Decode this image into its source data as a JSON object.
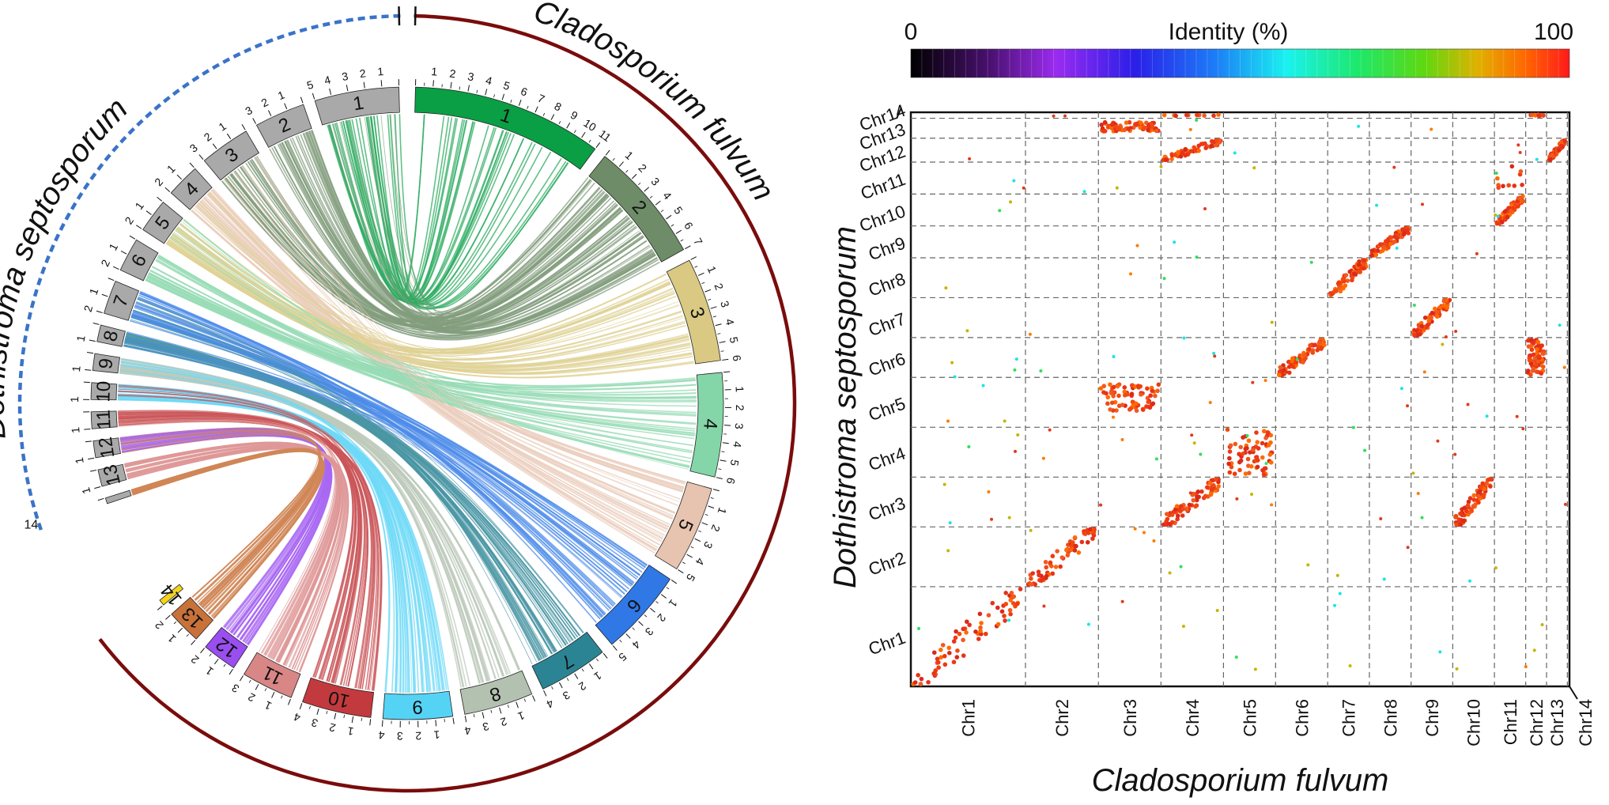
{
  "circos": {
    "genome_left": "Dothistroma septosporum",
    "genome_right": "Cladosporium fulvum",
    "left_chromosomes": [
      {
        "label": "1",
        "length": 5
      },
      {
        "label": "2",
        "length": 3
      },
      {
        "label": "3",
        "length": 3
      },
      {
        "label": "4",
        "length": 2
      },
      {
        "label": "5",
        "length": 2
      },
      {
        "label": "6",
        "length": 2
      },
      {
        "label": "7",
        "length": 2
      },
      {
        "label": "8",
        "length": 1
      },
      {
        "label": "9",
        "length": 1
      },
      {
        "label": "10",
        "length": 1
      },
      {
        "label": "11",
        "length": 1
      },
      {
        "label": "12",
        "length": 1
      },
      {
        "label": "13",
        "length": 1
      },
      {
        "label": "14",
        "length": 0
      }
    ],
    "right_chromosomes": [
      {
        "label": "1",
        "length": 11,
        "color": "#0a9e45"
      },
      {
        "label": "2",
        "length": 7,
        "color": "#6e8c67"
      },
      {
        "label": "3",
        "length": 6,
        "color": "#d9c982"
      },
      {
        "label": "4",
        "length": 6,
        "color": "#84d6a8"
      },
      {
        "label": "5",
        "length": 5,
        "color": "#e7c4b0"
      },
      {
        "label": "6",
        "length": 5,
        "color": "#2f78e6"
      },
      {
        "label": "7",
        "length": 4,
        "color": "#2b8494"
      },
      {
        "label": "8",
        "length": 4,
        "color": "#b3c2b0"
      },
      {
        "label": "9",
        "length": 4,
        "color": "#55d3f5"
      },
      {
        "label": "10",
        "length": 4,
        "color": "#c23a3d"
      },
      {
        "label": "11",
        "length": 3,
        "color": "#d98686"
      },
      {
        "label": "12",
        "length": 2,
        "color": "#9a4ef0"
      },
      {
        "label": "13",
        "length": 2,
        "color": "#c8723a"
      },
      {
        "label": "14",
        "length": 0,
        "color": "#f3d31b"
      }
    ],
    "left_chr_color": "#a9a9a9",
    "left_outline_color": "#3a73c9",
    "right_outline_color": "#7a0c0c"
  },
  "dotplot": {
    "colorbar": {
      "title": "Identity (%)",
      "min_label": "0",
      "max_label": "100"
    },
    "x_title": "Cladosporium fulvum",
    "y_title": "Dothistroma septosporum",
    "x_labels": [
      "Chr1",
      "Chr2",
      "Chr3",
      "Chr4",
      "Chr5",
      "Chr6",
      "Chr7",
      "Chr8",
      "Chr9",
      "Chr10",
      "Chr11",
      "Chr12",
      "Chr13",
      "Chr14"
    ],
    "x_widths": [
      11,
      7,
      6,
      6,
      5,
      5,
      4,
      4,
      4,
      4,
      3,
      2,
      2,
      0.2
    ],
    "y_labels": [
      "Chr1",
      "Chr2",
      "Chr3",
      "Chr4",
      "Chr5",
      "Chr6",
      "Chr7",
      "Chr8",
      "Chr9",
      "Chr10",
      "Chr11",
      "Chr12",
      "Chr13",
      "Chr14"
    ],
    "y_heights": [
      5,
      3,
      2.5,
      2.5,
      2.5,
      2,
      2,
      2,
      1.6,
      1.6,
      1.6,
      1.2,
      1,
      0.3
    ],
    "blocks": [
      {
        "x": 1,
        "y": 1,
        "shape": "diag"
      },
      {
        "x": 2,
        "y": 2,
        "shape": "diag"
      },
      {
        "x": 4,
        "y": 3,
        "shape": "diag"
      },
      {
        "x": 10,
        "y": 3,
        "shape": "diag"
      },
      {
        "x": 5,
        "y": 4,
        "shape": "square"
      },
      {
        "x": 3,
        "y": 5,
        "shape": "band"
      },
      {
        "x": 6,
        "y": 6,
        "shape": "diag"
      },
      {
        "x": 12,
        "y": 6,
        "shape": "square"
      },
      {
        "x": 9,
        "y": 7,
        "shape": "diag"
      },
      {
        "x": 7,
        "y": 8,
        "shape": "diag"
      },
      {
        "x": 8,
        "y": 9,
        "shape": "diag"
      },
      {
        "x": 11,
        "y": 10,
        "shape": "diag"
      },
      {
        "x": 11,
        "y": 11,
        "shape": "small"
      },
      {
        "x": 4,
        "y": 12,
        "shape": "diag"
      },
      {
        "x": 13,
        "y": 12,
        "shape": "diag"
      },
      {
        "x": 3,
        "y": 13,
        "shape": "band"
      },
      {
        "x": 4,
        "y": 14,
        "shape": "small"
      },
      {
        "x": 12,
        "y": 14,
        "shape": "small"
      }
    ]
  }
}
